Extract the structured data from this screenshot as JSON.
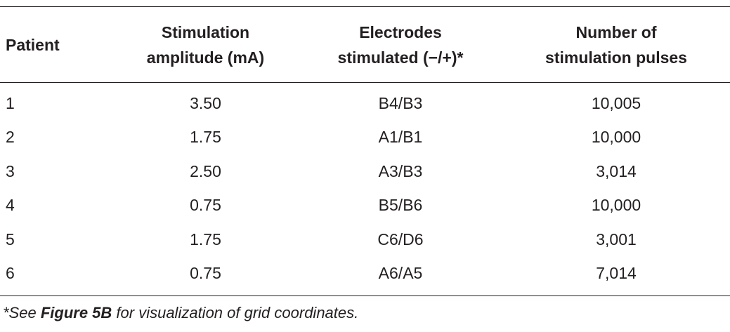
{
  "table": {
    "headers": [
      {
        "lines": [
          "Patient"
        ]
      },
      {
        "lines": [
          "Stimulation",
          "amplitude (mA)"
        ]
      },
      {
        "lines": [
          "Electrodes",
          "stimulated (−/+)*"
        ]
      },
      {
        "lines": [
          "Number of",
          "stimulation pulses"
        ]
      }
    ],
    "rows": [
      {
        "patient": "1",
        "amplitude": "3.50",
        "electrodes": "B4/B3",
        "pulses": "10,005"
      },
      {
        "patient": "2",
        "amplitude": "1.75",
        "electrodes": "A1/B1",
        "pulses": "10,000"
      },
      {
        "patient": "3",
        "amplitude": "2.50",
        "electrodes": "A3/B3",
        "pulses": "3,014"
      },
      {
        "patient": "4",
        "amplitude": "0.75",
        "electrodes": "B5/B6",
        "pulses": "10,000"
      },
      {
        "patient": "5",
        "amplitude": "1.75",
        "electrodes": "C6/D6",
        "pulses": "3,001"
      },
      {
        "patient": "6",
        "amplitude": "0.75",
        "electrodes": "A6/A5",
        "pulses": "7,014"
      }
    ]
  },
  "footnote": {
    "prefix": "*See ",
    "bold": "Figure 5B",
    "suffix": " for visualization of grid coordinates."
  }
}
